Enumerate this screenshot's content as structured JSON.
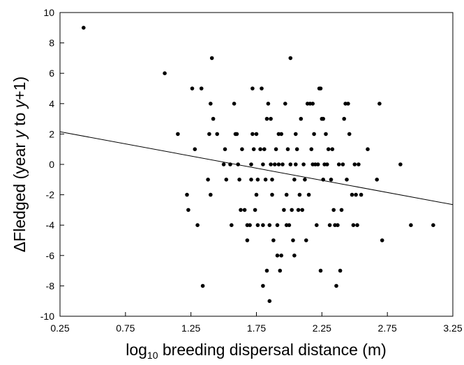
{
  "chart_data": {
    "type": "scatter",
    "title": "",
    "xlabel": {
      "prefix": "log",
      "subscript": "10",
      "suffix": " breeding dispersal distance (m)"
    },
    "ylabel": {
      "symbol": "Δ",
      "text_a": "Fledged (year ",
      "italic_a": "y",
      "text_b": " to ",
      "italic_b": "y",
      "text_c": "+1)"
    },
    "xlim": [
      0.25,
      3.25
    ],
    "ylim": [
      -10,
      10
    ],
    "xticks": [
      "0.25",
      "0.75",
      "1.25",
      "1.75",
      "2.25",
      "2.75",
      "3.25"
    ],
    "yticks": [
      "10",
      "8",
      "6",
      "4",
      "2",
      "0",
      "-2",
      "-4",
      "-6",
      "-8",
      "-10"
    ],
    "grid": false,
    "legend": "none",
    "marker_color": "#000000",
    "trend_line": {
      "x": [
        0.25,
        3.25
      ],
      "y": [
        2.15,
        -2.65
      ]
    },
    "points": [
      [
        0.43,
        9
      ],
      [
        1.05,
        6
      ],
      [
        1.15,
        2
      ],
      [
        1.22,
        -2
      ],
      [
        1.23,
        -3
      ],
      [
        1.26,
        5
      ],
      [
        1.28,
        1
      ],
      [
        1.3,
        -4
      ],
      [
        1.33,
        5
      ],
      [
        1.34,
        -8
      ],
      [
        1.38,
        -1
      ],
      [
        1.39,
        2
      ],
      [
        1.4,
        4
      ],
      [
        1.41,
        7
      ],
      [
        1.4,
        -2
      ],
      [
        1.42,
        3
      ],
      [
        1.45,
        2
      ],
      [
        1.5,
        0
      ],
      [
        1.51,
        1
      ],
      [
        1.52,
        -1
      ],
      [
        1.55,
        0
      ],
      [
        1.56,
        -4
      ],
      [
        1.58,
        4
      ],
      [
        1.59,
        2
      ],
      [
        1.6,
        2
      ],
      [
        1.61,
        0
      ],
      [
        1.62,
        -1
      ],
      [
        1.63,
        -3
      ],
      [
        1.64,
        1
      ],
      [
        1.66,
        -3
      ],
      [
        1.68,
        -4
      ],
      [
        1.68,
        -5
      ],
      [
        1.7,
        -4
      ],
      [
        1.71,
        0
      ],
      [
        1.71,
        -1
      ],
      [
        1.72,
        2
      ],
      [
        1.72,
        5
      ],
      [
        1.73,
        1
      ],
      [
        1.74,
        -3
      ],
      [
        1.75,
        2
      ],
      [
        1.75,
        -2
      ],
      [
        1.76,
        -1
      ],
      [
        1.76,
        -4
      ],
      [
        1.78,
        1
      ],
      [
        1.79,
        5
      ],
      [
        1.8,
        -4
      ],
      [
        1.8,
        0
      ],
      [
        1.8,
        -8
      ],
      [
        1.81,
        1
      ],
      [
        1.82,
        -1
      ],
      [
        1.83,
        3
      ],
      [
        1.83,
        -7
      ],
      [
        1.84,
        4
      ],
      [
        1.85,
        -4
      ],
      [
        1.85,
        -9
      ],
      [
        1.86,
        0
      ],
      [
        1.86,
        3
      ],
      [
        1.87,
        -1
      ],
      [
        1.87,
        -2
      ],
      [
        1.88,
        -5
      ],
      [
        1.89,
        0
      ],
      [
        1.9,
        1
      ],
      [
        1.91,
        -4
      ],
      [
        1.91,
        -6
      ],
      [
        1.92,
        2
      ],
      [
        1.92,
        0
      ],
      [
        1.93,
        -7
      ],
      [
        1.94,
        2
      ],
      [
        1.94,
        -6
      ],
      [
        1.95,
        0
      ],
      [
        1.96,
        -3
      ],
      [
        1.97,
        4
      ],
      [
        1.98,
        -4
      ],
      [
        1.98,
        -2
      ],
      [
        1.99,
        1
      ],
      [
        2.0,
        -4
      ],
      [
        2.01,
        0
      ],
      [
        2.01,
        7
      ],
      [
        2.02,
        -3
      ],
      [
        2.03,
        -5
      ],
      [
        2.04,
        -1
      ],
      [
        2.04,
        -6
      ],
      [
        2.05,
        0
      ],
      [
        2.05,
        2
      ],
      [
        2.06,
        1
      ],
      [
        2.07,
        -3
      ],
      [
        2.08,
        -2
      ],
      [
        2.09,
        3
      ],
      [
        2.1,
        -3
      ],
      [
        2.11,
        0
      ],
      [
        2.12,
        -1
      ],
      [
        2.13,
        -5
      ],
      [
        2.14,
        4
      ],
      [
        2.15,
        -2
      ],
      [
        2.16,
        4
      ],
      [
        2.17,
        1
      ],
      [
        2.18,
        4
      ],
      [
        2.18,
        0
      ],
      [
        2.19,
        2
      ],
      [
        2.2,
        0
      ],
      [
        2.21,
        -4
      ],
      [
        2.22,
        0
      ],
      [
        2.23,
        5
      ],
      [
        2.24,
        -7
      ],
      [
        2.24,
        5
      ],
      [
        2.25,
        3
      ],
      [
        2.26,
        3
      ],
      [
        2.26,
        -1
      ],
      [
        2.27,
        0
      ],
      [
        2.28,
        2
      ],
      [
        2.29,
        0
      ],
      [
        2.3,
        1
      ],
      [
        2.31,
        -4
      ],
      [
        2.32,
        -1
      ],
      [
        2.33,
        1
      ],
      [
        2.34,
        -3
      ],
      [
        2.35,
        -4
      ],
      [
        2.36,
        -8
      ],
      [
        2.37,
        -4
      ],
      [
        2.38,
        0
      ],
      [
        2.39,
        -7
      ],
      [
        2.4,
        -3
      ],
      [
        2.41,
        0
      ],
      [
        2.42,
        3
      ],
      [
        2.43,
        4
      ],
      [
        2.44,
        -1
      ],
      [
        2.45,
        4
      ],
      [
        2.46,
        2
      ],
      [
        2.48,
        -2
      ],
      [
        2.49,
        -4
      ],
      [
        2.5,
        0
      ],
      [
        2.51,
        -2
      ],
      [
        2.52,
        -4
      ],
      [
        2.53,
        0
      ],
      [
        2.55,
        -2
      ],
      [
        2.6,
        1
      ],
      [
        2.67,
        -1
      ],
      [
        2.69,
        4
      ],
      [
        2.71,
        -5
      ],
      [
        2.85,
        0
      ],
      [
        2.93,
        -4
      ],
      [
        3.1,
        -4
      ]
    ]
  }
}
